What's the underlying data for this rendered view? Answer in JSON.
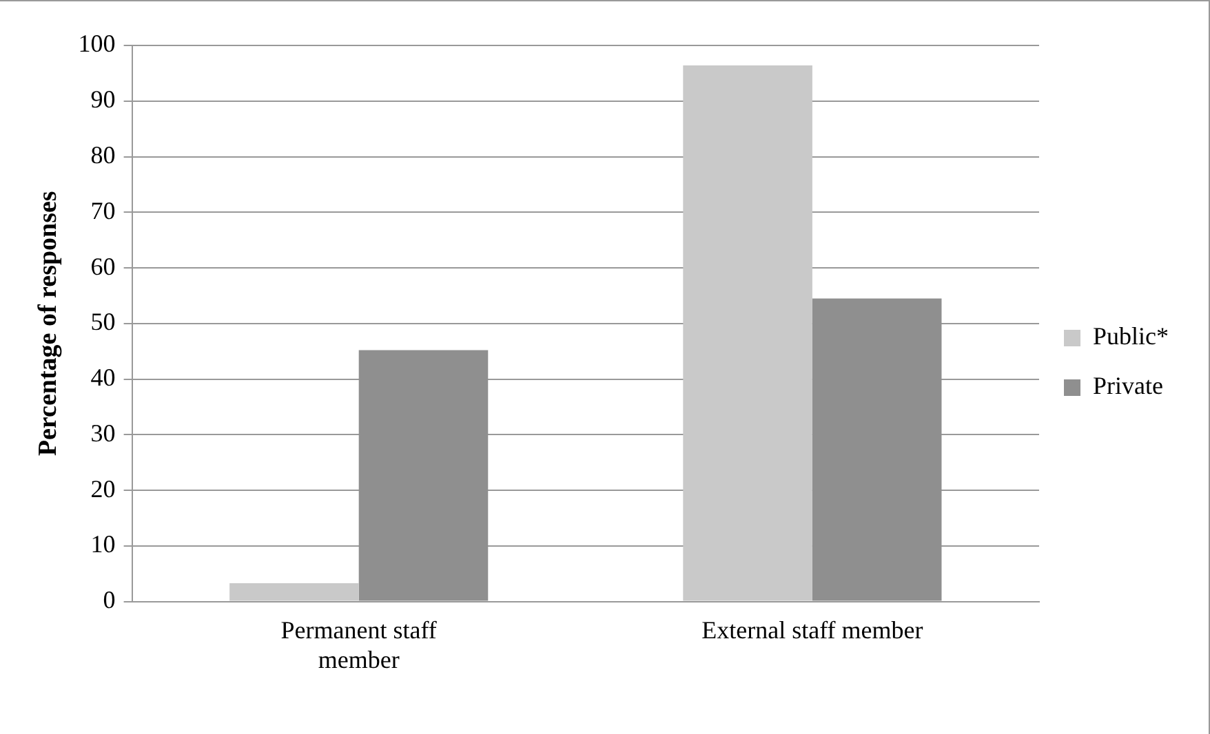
{
  "chart_data": {
    "type": "bar",
    "ylabel": "Percentage of responses",
    "categories": [
      "Permanent staff member",
      "External staff member"
    ],
    "series": [
      {
        "name": "Public*",
        "color": "#c9c9c9",
        "values": [
          3.3,
          96.4
        ]
      },
      {
        "name": "Private",
        "color": "#8f8f8f",
        "values": [
          45.2,
          54.5
        ]
      }
    ],
    "ylim": [
      0,
      100
    ],
    "yticks": [
      0,
      10,
      20,
      30,
      40,
      50,
      60,
      70,
      80,
      90,
      100
    ],
    "grid": "y",
    "legend": "right"
  }
}
